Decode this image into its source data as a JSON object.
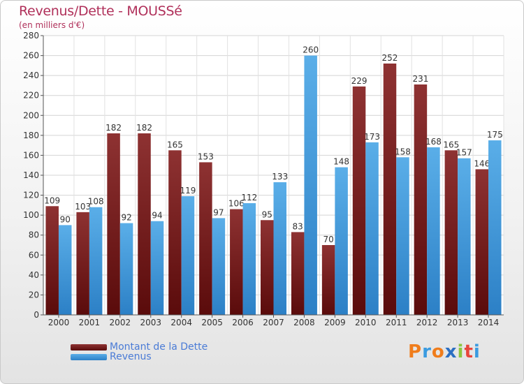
{
  "title": "Revenus/Dette - MOUSSé",
  "subtitle": "(en milliers d'€)",
  "logo": {
    "text": "Proxiti",
    "colors": [
      "#f07d1c",
      "#3a9be0",
      "#f07d1c",
      "#2c6fc2",
      "#8cc63f",
      "#e8463c",
      "#3a9be0"
    ]
  },
  "legend": [
    {
      "label": "Montant de la Dette",
      "color": "#7a1c1c"
    },
    {
      "label": "Revenus",
      "color": "#3d94d8"
    }
  ],
  "chart_data": {
    "type": "bar",
    "title": "Revenus/Dette - MOUSSé",
    "ylabel": "",
    "xlabel": "",
    "ylim": [
      0,
      280
    ],
    "yticks": [
      0,
      20,
      40,
      60,
      80,
      100,
      120,
      140,
      160,
      180,
      200,
      220,
      240,
      260,
      280
    ],
    "grid": true,
    "legend_position": "bottom-left",
    "categories": [
      "2000",
      "2001",
      "2002",
      "2003",
      "2004",
      "2005",
      "2006",
      "2007",
      "2008",
      "2009",
      "2010",
      "2011",
      "2012",
      "2013",
      "2014"
    ],
    "series": [
      {
        "name": "Montant de la Dette",
        "color": "#7a1c1c",
        "values": [
          109,
          103,
          182,
          182,
          165,
          153,
          106,
          95,
          83,
          70,
          229,
          252,
          231,
          165,
          146
        ]
      },
      {
        "name": "Revenus",
        "color": "#3d94d8",
        "values": [
          90,
          108,
          92,
          94,
          119,
          97,
          112,
          133,
          260,
          148,
          173,
          158,
          168,
          157,
          175
        ]
      }
    ]
  }
}
